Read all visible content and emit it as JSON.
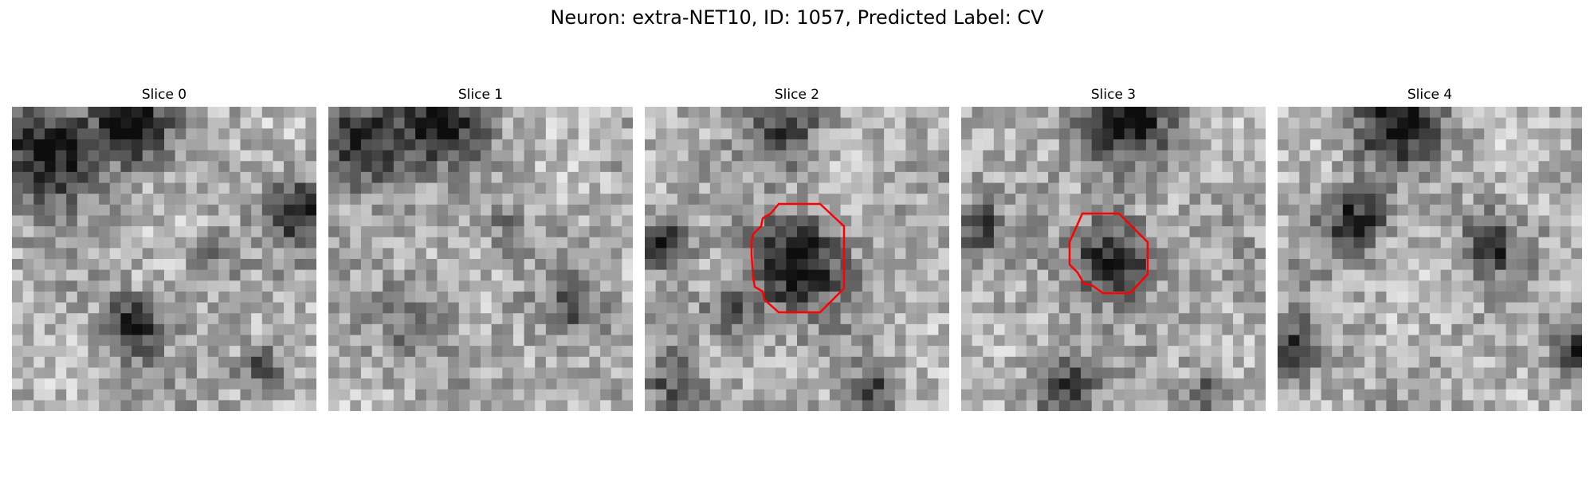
{
  "figure": {
    "title": "Neuron: extra-NET10, ID: 1057, Predicted Label: CV"
  },
  "panels": [
    {
      "title": "Slice 0",
      "has_contour": false
    },
    {
      "title": "Slice 1",
      "has_contour": false
    },
    {
      "title": "Slice 2",
      "has_contour": true
    },
    {
      "title": "Slice 3",
      "has_contour": true
    },
    {
      "title": "Slice 4",
      "has_contour": false
    }
  ],
  "colors": {
    "background": "#ffffff",
    "contour": "#ff0000",
    "colormap": "gray"
  }
}
